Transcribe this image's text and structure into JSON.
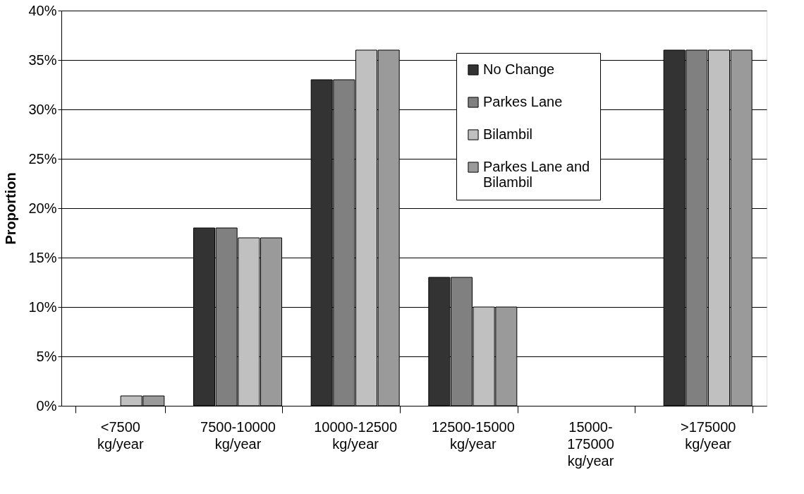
{
  "chart_data": {
    "type": "bar",
    "ylabel": "Proportion",
    "categories": [
      "<7500\nkg/year",
      "7500-10000\nkg/year",
      "10000-12500\nkg/year",
      "12500-15000\nkg/year",
      "15000-\n175000\nkg/year",
      ">175000\nkg/year"
    ],
    "series": [
      {
        "name": "No Change",
        "color": "#333333",
        "values": [
          0,
          18,
          33,
          13,
          0,
          36
        ]
      },
      {
        "name": "Parkes Lane",
        "color": "#808080",
        "values": [
          0,
          18,
          33,
          13,
          0,
          36
        ]
      },
      {
        "name": "Bilambil",
        "color": "#c0c0c0",
        "values": [
          1,
          17,
          36,
          10,
          0,
          36
        ]
      },
      {
        "name": "Parkes Lane and\nBilambil",
        "color": "#9a9a9a",
        "values": [
          1,
          17,
          36,
          10,
          0,
          36
        ]
      }
    ],
    "ylim": [
      0,
      40
    ],
    "yticks": [
      {
        "value": 0,
        "label": "0%"
      },
      {
        "value": 5,
        "label": "5%"
      },
      {
        "value": 10,
        "label": "10%"
      },
      {
        "value": 15,
        "label": "15%"
      },
      {
        "value": 20,
        "label": "20%"
      },
      {
        "value": 25,
        "label": "25%"
      },
      {
        "value": 30,
        "label": "30%"
      },
      {
        "value": 35,
        "label": "35%"
      },
      {
        "value": 40,
        "label": "40%"
      }
    ],
    "grid": "y",
    "legend": "top"
  }
}
